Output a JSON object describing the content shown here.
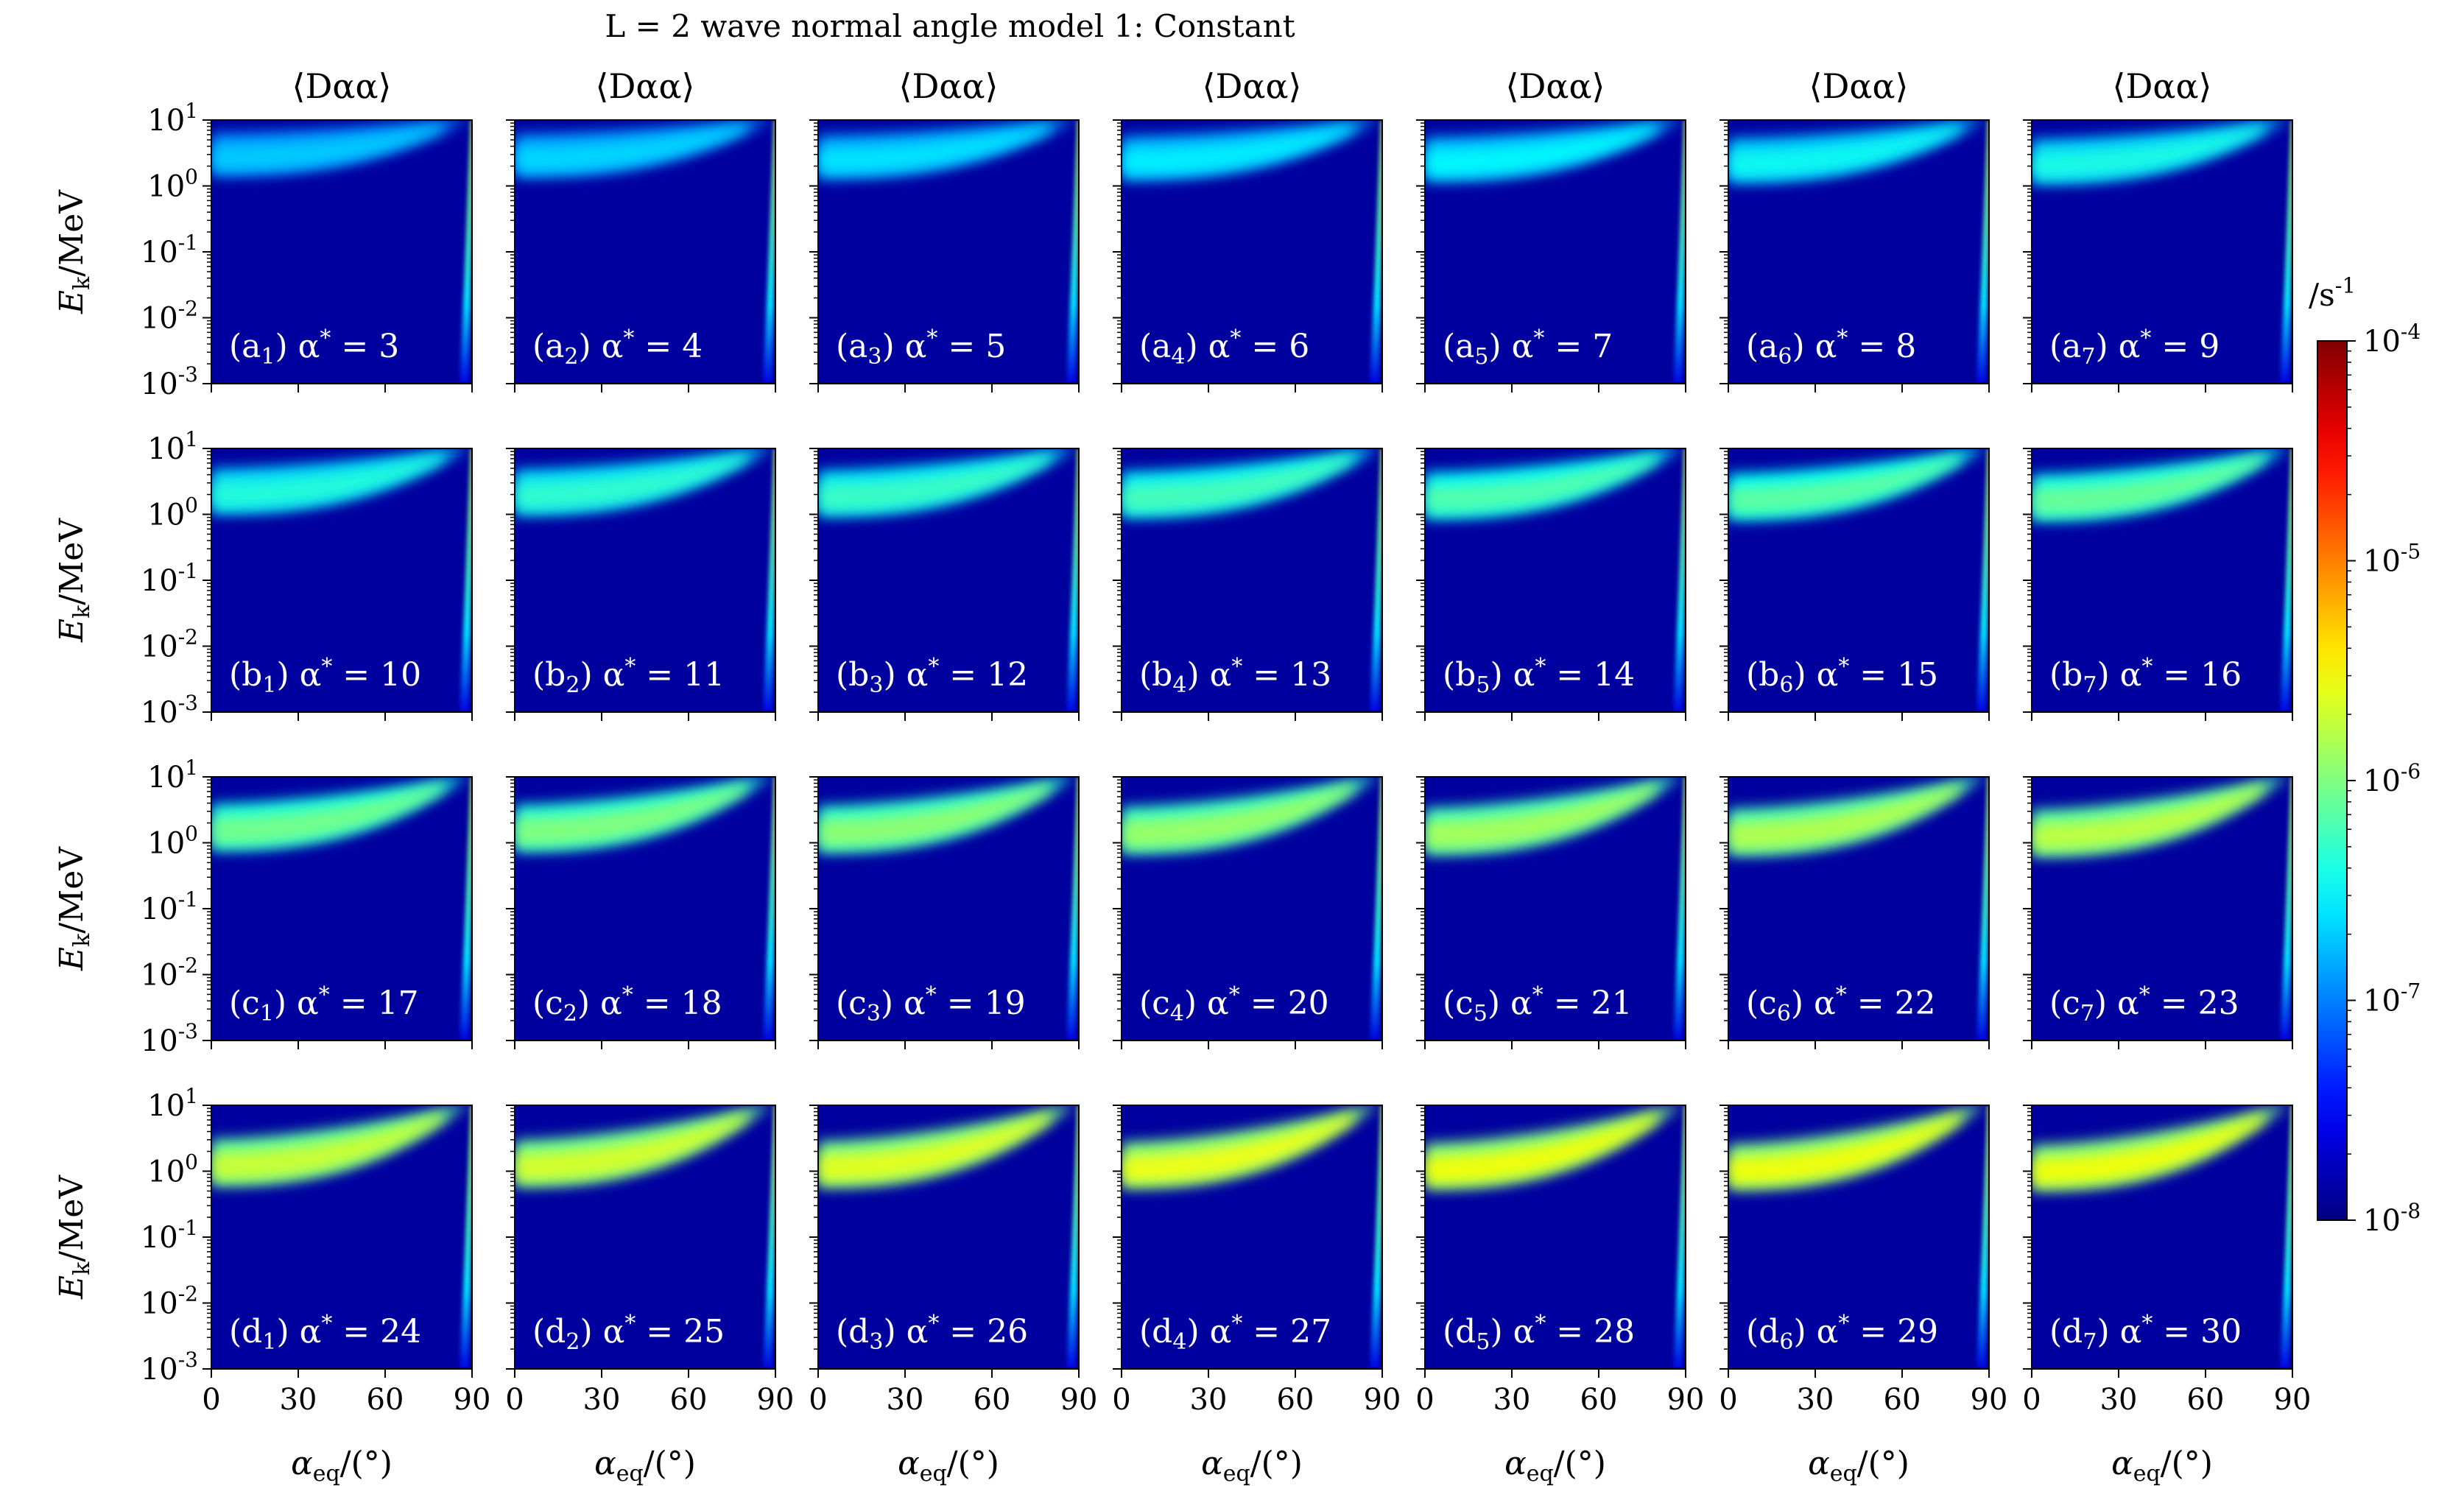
{
  "chart_data": {
    "type": "heatmap",
    "title": "L = 2 wave normal angle model 1: Constant",
    "column_title": "⟨Dαα⟩",
    "xlabel": "αeq/(°)",
    "ylabel": "Ek/MeV",
    "x_ticks": [
      "0",
      "30",
      "60",
      "90"
    ],
    "xlim": [
      0,
      90
    ],
    "y_scale": "log",
    "ylim": [
      0.001,
      10
    ],
    "y_ticks": [
      "10^1",
      "10^0",
      "10^-1",
      "10^-2",
      "10^-3"
    ],
    "colorbar": {
      "unit": "/s^-1",
      "scale": "log",
      "range": [
        1e-08,
        0.0001
      ],
      "ticks": [
        "10^-4",
        "10^-5",
        "10^-6",
        "10^-7",
        "10^-8"
      ],
      "colormap": "jet"
    },
    "panels": [
      {
        "label": "(a1) α* = 3",
        "alpha_star": 3
      },
      {
        "label": "(a2) α* = 4",
        "alpha_star": 4
      },
      {
        "label": "(a3) α* = 5",
        "alpha_star": 5
      },
      {
        "label": "(a4) α* = 6",
        "alpha_star": 6
      },
      {
        "label": "(a5) α* = 7",
        "alpha_star": 7
      },
      {
        "label": "(a6) α* = 8",
        "alpha_star": 8
      },
      {
        "label": "(a7) α* = 9",
        "alpha_star": 9
      },
      {
        "label": "(b1) α* = 10",
        "alpha_star": 10
      },
      {
        "label": "(b2) α* = 11",
        "alpha_star": 11
      },
      {
        "label": "(b3) α* = 12",
        "alpha_star": 12
      },
      {
        "label": "(b4) α* = 13",
        "alpha_star": 13
      },
      {
        "label": "(b5) α* = 14",
        "alpha_star": 14
      },
      {
        "label": "(b6) α* = 15",
        "alpha_star": 15
      },
      {
        "label": "(b7) α* = 16",
        "alpha_star": 16
      },
      {
        "label": "(c1) α* = 17",
        "alpha_star": 17
      },
      {
        "label": "(c2) α* = 18",
        "alpha_star": 18
      },
      {
        "label": "(c3) α* = 19",
        "alpha_star": 19
      },
      {
        "label": "(c4) α* = 20",
        "alpha_star": 20
      },
      {
        "label": "(c5) α* = 21",
        "alpha_star": 21
      },
      {
        "label": "(c6) α* = 22",
        "alpha_star": 22
      },
      {
        "label": "(c7) α* = 23",
        "alpha_star": 23
      },
      {
        "label": "(d1) α* = 24",
        "alpha_star": 24
      },
      {
        "label": "(d2) α* = 25",
        "alpha_star": 25
      },
      {
        "label": "(d3) α* = 26",
        "alpha_star": 26
      },
      {
        "label": "(d4) α* = 27",
        "alpha_star": 27
      },
      {
        "label": "(d5) α* = 28",
        "alpha_star": 28
      },
      {
        "label": "(d6) α* = 29",
        "alpha_star": 29
      },
      {
        "label": "(d7) α* = 30",
        "alpha_star": 30
      }
    ]
  }
}
